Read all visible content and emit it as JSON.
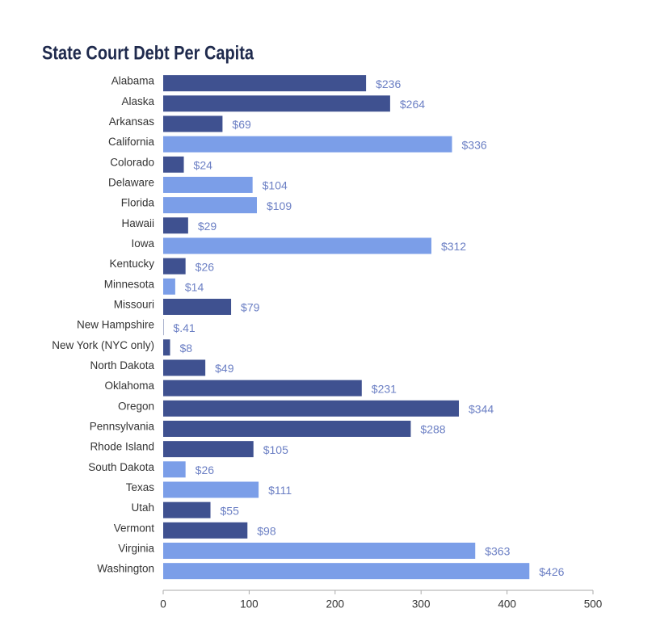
{
  "chart_data": {
    "type": "hbar",
    "title": "State Court Debt Per Capita",
    "categories": [
      "Alabama",
      "Alaska",
      "Arkansas",
      "California",
      "Colorado",
      "Delaware",
      "Florida",
      "Hawaii",
      "Iowa",
      "Kentucky",
      "Minnesota",
      "Missouri",
      "New Hampshire",
      "New York (NYC only)",
      "North Dakota",
      "Oklahoma",
      "Oregon",
      "Pennsylvania",
      "Rhode Island",
      "South Dakota",
      "Texas",
      "Utah",
      "Vermont",
      "Virginia",
      "Washington"
    ],
    "values": [
      236,
      264,
      69,
      336,
      24,
      104,
      109,
      29,
      312,
      26,
      14,
      79,
      0.41,
      8,
      49,
      231,
      344,
      288,
      105,
      26,
      111,
      55,
      98,
      363,
      426
    ],
    "value_labels": [
      "$236",
      "$264",
      "$69",
      "$336",
      "$24",
      "$104",
      "$109",
      "$29",
      "$312",
      "$26",
      "$14",
      "$79",
      "$.41",
      "$8",
      "$49",
      "$231",
      "$344",
      "$288",
      "$105",
      "$26",
      "$111",
      "$55",
      "$98",
      "$363",
      "$426"
    ],
    "colors": [
      "#3f5190",
      "#3f5190",
      "#3f5190",
      "#7b9ee8",
      "#3f5190",
      "#7b9ee8",
      "#7b9ee8",
      "#3f5190",
      "#7b9ee8",
      "#3f5190",
      "#7b9ee8",
      "#3f5190",
      "#3f5190",
      "#3f5190",
      "#3f5190",
      "#3f5190",
      "#3f5190",
      "#3f5190",
      "#3f5190",
      "#7b9ee8",
      "#7b9ee8",
      "#3f5190",
      "#3f5190",
      "#7b9ee8",
      "#7b9ee8"
    ],
    "xlim": [
      0,
      500
    ],
    "xticks": [
      0,
      100,
      200,
      300,
      400,
      500
    ],
    "grid": false
  }
}
